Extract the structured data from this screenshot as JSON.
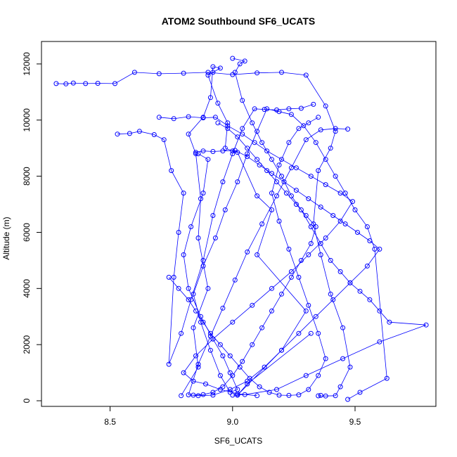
{
  "chart_data": {
    "type": "line",
    "title": "ATOM2 Southbound SF6_UCATS",
    "xlabel": "SF6_UCATS",
    "ylabel": "Altitude (m)",
    "xlim": [
      8.22,
      9.83
    ],
    "ylim": [
      -200,
      12800
    ],
    "x_ticks": [
      "8.5",
      "9.0",
      "9.5"
    ],
    "x_tick_values": [
      8.5,
      9.0,
      9.5
    ],
    "y_ticks": [
      "0",
      "2000",
      "4000",
      "6000",
      "8000",
      "10000",
      "12000"
    ],
    "y_tick_values": [
      0,
      2000,
      4000,
      6000,
      8000,
      10000,
      12000
    ],
    "grid": false,
    "legend": "none",
    "color": "#0000ff",
    "marker": "open-circle",
    "series": [
      {
        "x": [
          8.79,
          8.86,
          8.84,
          8.9,
          8.86,
          8.87,
          8.85,
          8.82,
          8.88,
          8.91,
          8.92,
          8.95,
          8.92,
          8.9,
          8.94,
          8.98,
          8.97,
          9.0,
          9.02,
          9.1,
          9.16,
          9.1,
          9.3,
          9.2,
          9.02,
          9.06,
          9.32
        ],
        "y": [
          180,
          1200,
          2600,
          4000,
          5800,
          7200,
          8800,
          9500,
          10100,
          10800,
          11900,
          11850,
          11700,
          11600,
          10600,
          9900,
          9000,
          8900,
          8850,
          7300,
          6800,
          5200,
          3200,
          1800,
          200,
          600,
          2400
        ]
      },
      {
        "x": [
          8.28,
          8.32,
          8.35,
          8.4,
          8.45,
          8.52,
          8.6,
          8.7,
          8.8,
          8.9,
          9.0,
          9.1,
          9.2,
          9.3,
          9.38,
          9.42,
          9.4,
          9.35,
          9.33,
          9.36,
          9.4,
          9.45,
          9.48,
          9.44,
          9.42,
          9.38,
          9.35,
          9.36
        ],
        "y": [
          11300,
          11290,
          11320,
          11300,
          11310,
          11300,
          11700,
          11650,
          11670,
          11700,
          11620,
          11680,
          11700,
          11600,
          10500,
          9600,
          9000,
          8200,
          6300,
          5200,
          3800,
          2600,
          1200,
          500,
          180,
          170,
          175,
          190
        ]
      },
      {
        "x": [
          8.53,
          8.58,
          8.62,
          8.68,
          8.72,
          8.75,
          8.8,
          8.78,
          8.76,
          8.74,
          8.79,
          8.83,
          8.88,
          8.92,
          8.96,
          9.0,
          9.04,
          9.09,
          9.13,
          9.18,
          9.23,
          9.28,
          9.33
        ],
        "y": [
          9500,
          9520,
          9600,
          9480,
          9300,
          8200,
          7400,
          6000,
          4400,
          1300,
          2400,
          3600,
          5000,
          6600,
          7800,
          8800,
          9700,
          10400,
          10380,
          10360,
          10400,
          10420,
          10560
        ]
      },
      {
        "x": [
          9.0,
          9.05,
          9.03,
          9.01,
          9.04,
          9.08,
          9.12,
          9.16,
          9.2,
          9.24,
          9.28,
          9.32,
          9.36,
          9.4,
          9.44,
          9.48,
          9.52,
          9.56,
          9.6,
          9.64,
          9.79,
          9.6,
          9.45,
          9.3,
          9.18,
          9.05,
          9.0,
          9.02
        ],
        "y": [
          12200,
          12100,
          12000,
          11700,
          10700,
          9900,
          9200,
          8600,
          8000,
          7300,
          6800,
          6200,
          5600,
          5000,
          4600,
          4200,
          3900,
          3600,
          3200,
          2800,
          2700,
          2100,
          1500,
          900,
          400,
          220,
          200,
          210
        ]
      },
      {
        "x": [
          8.86,
          8.9,
          8.88,
          8.83,
          8.8,
          8.82,
          8.87,
          8.92,
          8.96,
          8.99,
          9.02,
          8.99,
          8.95,
          8.91,
          8.87,
          8.84,
          8.88,
          8.93,
          8.97,
          9.02,
          9.06,
          9.1,
          9.14,
          9.19,
          9.24,
          9.29,
          9.34,
          9.38,
          9.42,
          9.46,
          9.5,
          9.55,
          9.58,
          9.63,
          9.52,
          9.47
        ],
        "y": [
          8800,
          8600,
          7400,
          6200,
          5200,
          4000,
          3000,
          2200,
          1600,
          1000,
          400,
          300,
          900,
          1800,
          2800,
          3800,
          4800,
          5800,
          6800,
          7800,
          8800,
          9600,
          10400,
          10300,
          10200,
          9800,
          9200,
          8600,
          8000,
          7400,
          6800,
          6200,
          5400,
          800,
          300,
          50
        ]
      },
      {
        "x": [
          8.94,
          8.98,
          9.02,
          9.06,
          9.1,
          9.14,
          9.18,
          9.22,
          9.26,
          9.3,
          9.34,
          9.32,
          9.28,
          9.24,
          9.2,
          9.16,
          9.12,
          9.08,
          9.04,
          9.0,
          8.96,
          8.92,
          8.88,
          8.84
        ],
        "y": [
          9900,
          9700,
          9400,
          9000,
          8600,
          8200,
          7800,
          7400,
          7000,
          6600,
          6200,
          5600,
          5000,
          4400,
          3800,
          3200,
          2600,
          2000,
          1400,
          900,
          500,
          300,
          220,
          200
        ]
      },
      {
        "x": [
          8.7,
          8.76,
          8.82,
          8.88,
          8.93,
          8.98,
          9.04,
          9.09,
          9.14,
          9.2,
          9.26,
          9.32,
          9.38,
          9.44,
          9.49,
          9.44,
          9.38,
          9.31,
          9.24,
          9.16,
          9.08,
          9.0,
          8.92,
          8.85,
          8.8,
          8.84,
          8.89,
          8.95,
          9.02,
          9.1
        ],
        "y": [
          10100,
          10050,
          10120,
          10080,
          10100,
          9800,
          9500,
          9200,
          8900,
          8600,
          8300,
          8000,
          7700,
          7400,
          7100,
          6400,
          5800,
          5200,
          4600,
          4000,
          3400,
          2800,
          2200,
          1600,
          1000,
          700,
          600,
          400,
          250,
          180
        ]
      },
      {
        "x": [
          8.85,
          8.88,
          8.92,
          8.96,
          9.01,
          9.06,
          9.11,
          9.16,
          9.21,
          9.26,
          9.31,
          9.36,
          9.41,
          9.46,
          9.51,
          9.56,
          9.6,
          9.55,
          9.48,
          9.41,
          9.34,
          9.27,
          9.2,
          9.13,
          9.06,
          8.99,
          8.92,
          8.86,
          8.82,
          8.86,
          8.91,
          8.96,
          9.01,
          9.06,
          9.12,
          9.18,
          9.24,
          9.3,
          9.36,
          9.42,
          9.47
        ],
        "y": [
          8850,
          8900,
          8880,
          8900,
          8920,
          8700,
          8400,
          8100,
          7800,
          7500,
          7200,
          6900,
          6600,
          6300,
          6000,
          5700,
          5400,
          4800,
          4200,
          3600,
          3000,
          2400,
          1800,
          1200,
          700,
          400,
          200,
          180,
          210,
          1300,
          2300,
          3300,
          4300,
          5300,
          6300,
          7300,
          8300,
          9300,
          9650,
          9700,
          9680
        ]
      },
      {
        "x": [
          8.74,
          8.78,
          8.82,
          8.85,
          8.88,
          8.91,
          8.95,
          8.99,
          9.03,
          9.07,
          9.11,
          9.15,
          9.19,
          9.23,
          9.27,
          9.31,
          9.35,
          9.38,
          9.35,
          9.31,
          9.27,
          9.23,
          9.19,
          9.16,
          9.19,
          9.23,
          9.27,
          9.31,
          9.35
        ],
        "y": [
          4400,
          4000,
          3600,
          3200,
          2800,
          2400,
          2000,
          1600,
          1200,
          800,
          500,
          300,
          200,
          190,
          210,
          400,
          900,
          1500,
          2400,
          3400,
          4400,
          5400,
          6400,
          7400,
          8400,
          9200,
          9700,
          9900,
          10100
        ]
      }
    ]
  }
}
